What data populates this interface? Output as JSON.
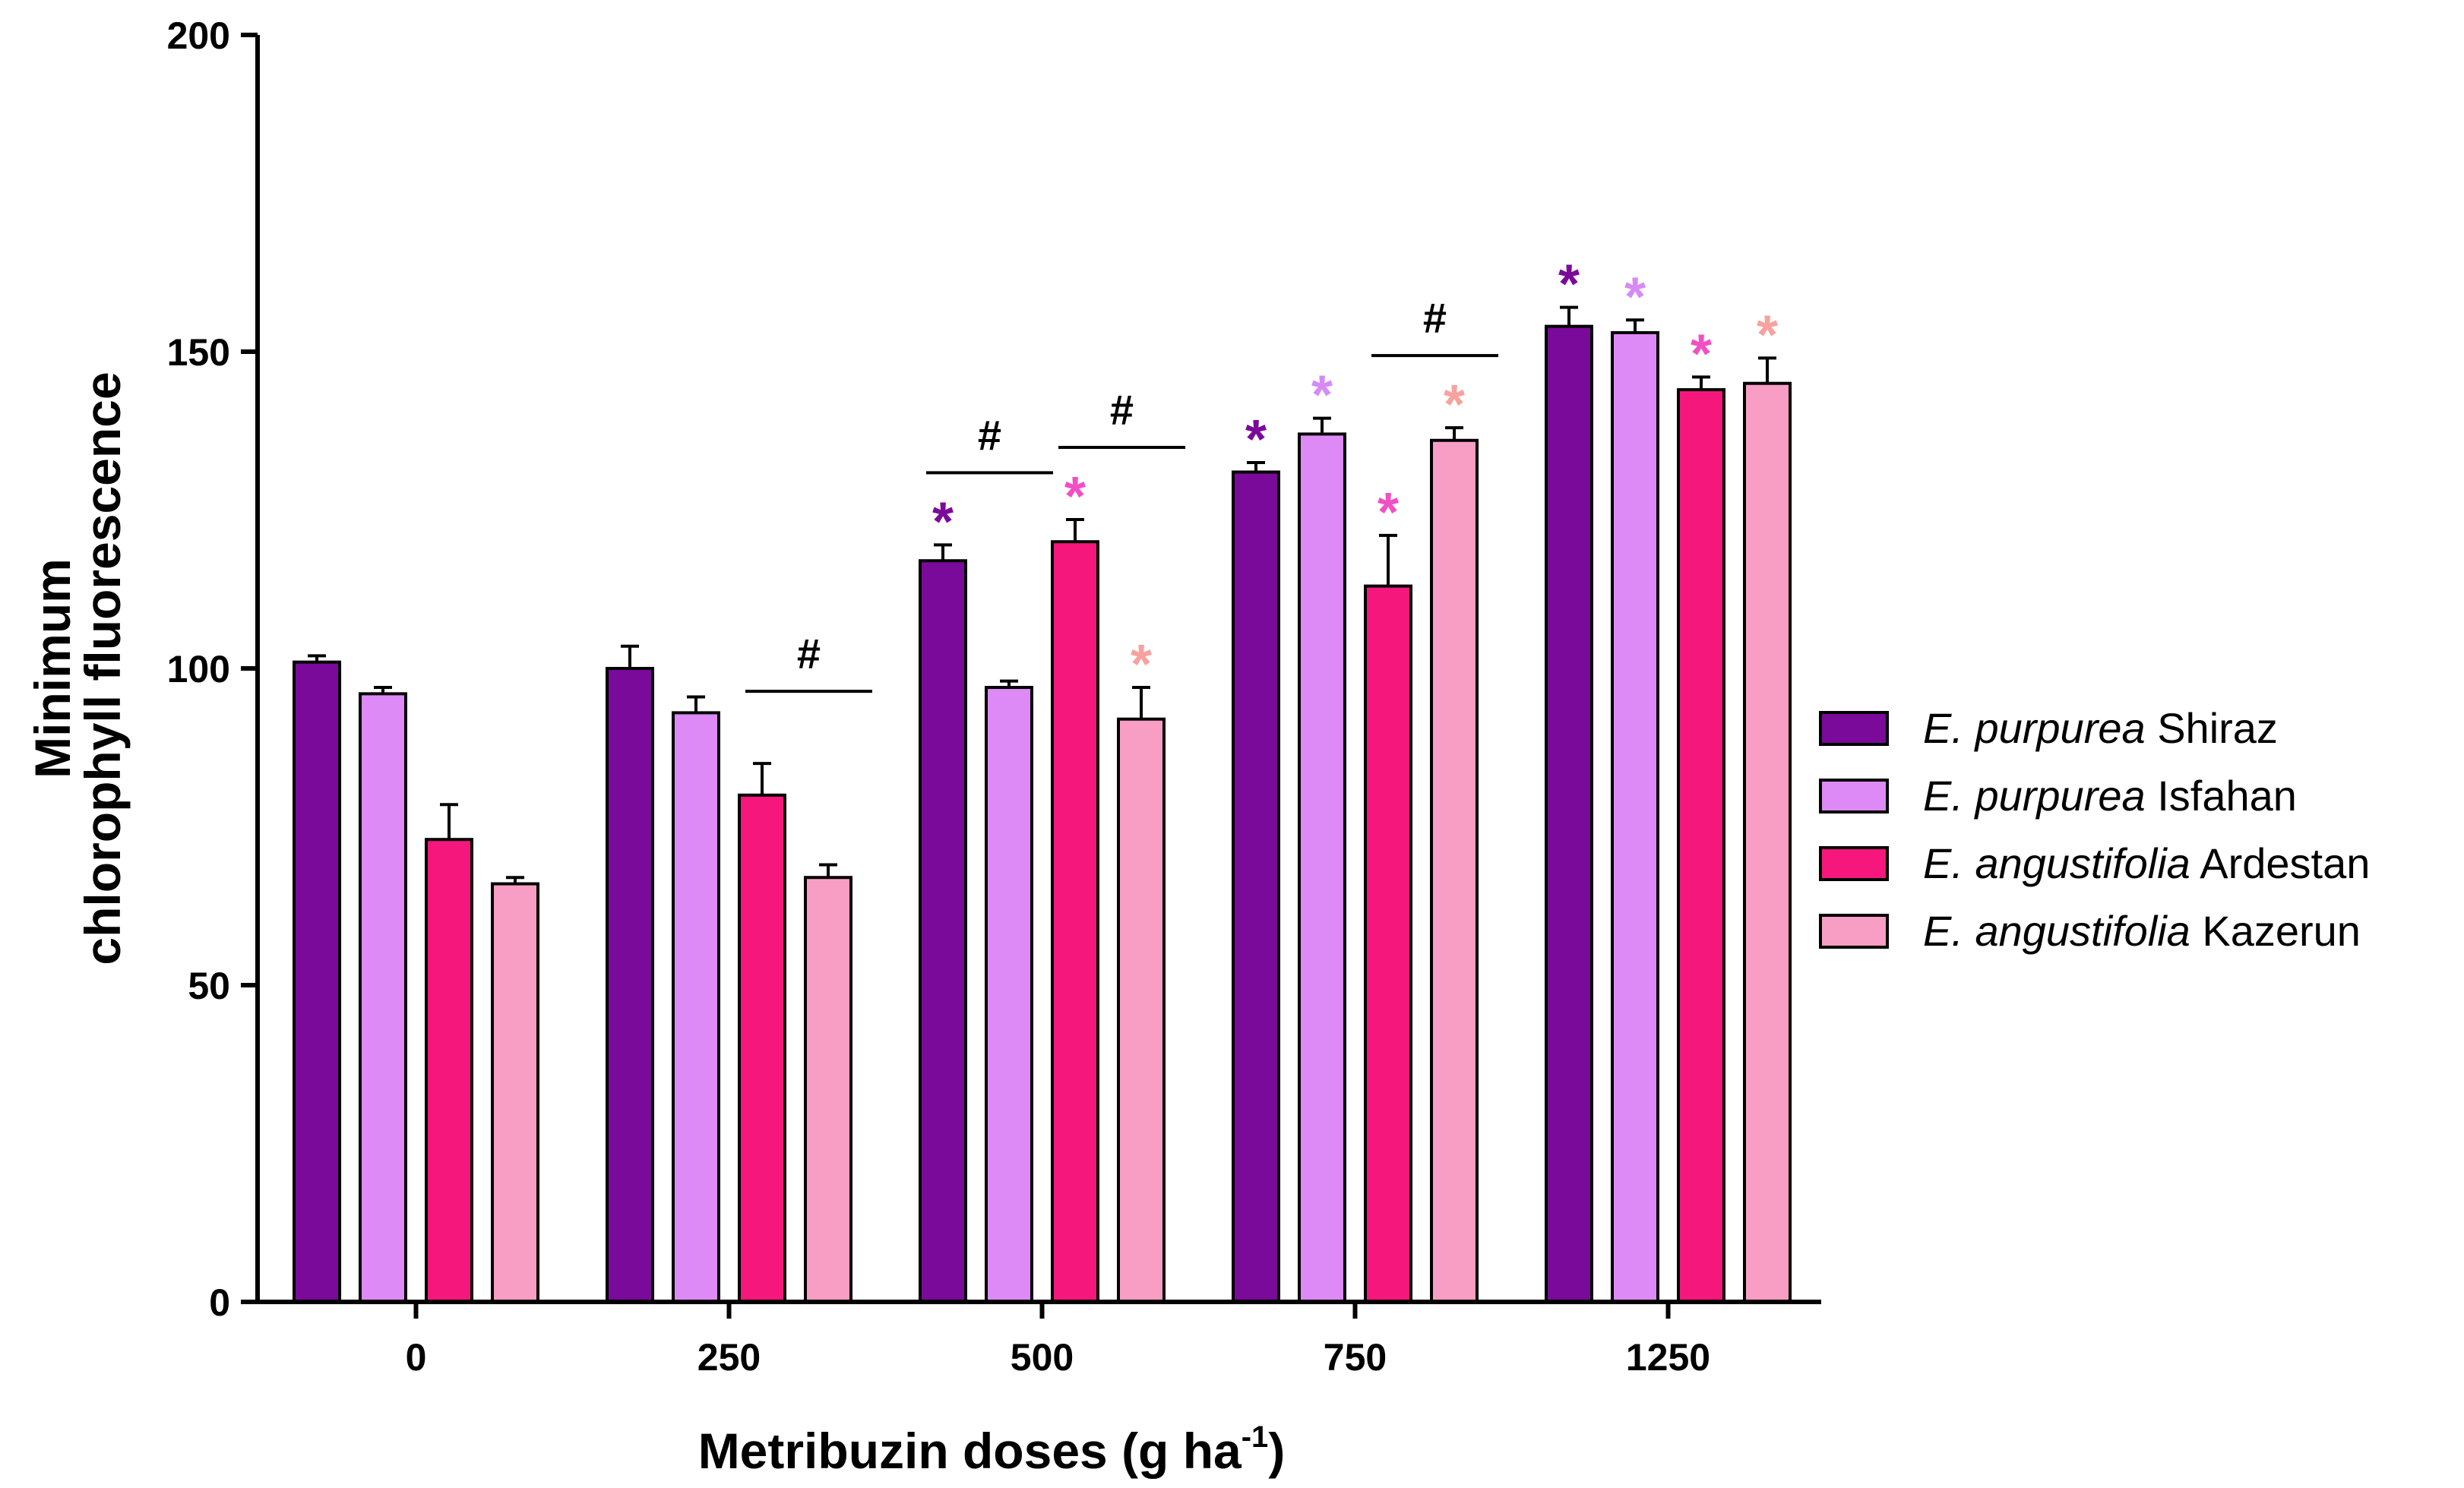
{
  "chart_data": {
    "type": "bar",
    "xlabel": "Metribuzin doses (g ha",
    "xlabel_sup": "-1",
    "xlabel_close": ")",
    "ylabel_line1": "Minimum",
    "ylabel_line2": "chlorophyll fluorescence",
    "ylim": [
      0,
      200
    ],
    "yticks": [
      0,
      50,
      100,
      150,
      200
    ],
    "categories": [
      "0",
      "250",
      "500",
      "750",
      "1250"
    ],
    "grid": false,
    "legend_position": "right",
    "series": [
      {
        "species": "E. purpurea",
        "population": "Shiraz",
        "color": "#7a0a99",
        "values": [
          101,
          100,
          117,
          131,
          154
        ],
        "errors": [
          1,
          3.5,
          2.5,
          1.5,
          3
        ]
      },
      {
        "species": "E. purpurea",
        "population": "Isfahan",
        "color": "#de8af6",
        "values": [
          96,
          93,
          97,
          137,
          153
        ],
        "errors": [
          1,
          2.5,
          1,
          2.5,
          2
        ]
      },
      {
        "species": "E. angustifolia",
        "population": "Ardestan",
        "color": "#f5177c",
        "values": [
          73,
          80,
          120,
          113,
          144
        ],
        "errors": [
          5.5,
          5,
          3.5,
          8,
          2
        ]
      },
      {
        "species": "E. angustifolia",
        "population": "Kazerun",
        "color": "#f89ec4",
        "values": [
          66,
          67,
          92,
          136,
          145
        ],
        "errors": [
          1,
          2,
          5,
          2,
          4
        ]
      }
    ],
    "significance_stars": [
      {
        "category": 2,
        "series": 0,
        "text": "*",
        "color": "#7a0a99"
      },
      {
        "category": 2,
        "series": 2,
        "text": "*",
        "color": "#f24fc4"
      },
      {
        "category": 2,
        "series": 3,
        "text": "*",
        "color": "#f7a29e"
      },
      {
        "category": 3,
        "series": 0,
        "text": "*",
        "color": "#7a0a99"
      },
      {
        "category": 3,
        "series": 1,
        "text": "*",
        "color": "#d68af6"
      },
      {
        "category": 3,
        "series": 2,
        "text": "*",
        "color": "#f24fc4"
      },
      {
        "category": 3,
        "series": 3,
        "text": "*",
        "color": "#f7a29e"
      },
      {
        "category": 4,
        "series": 0,
        "text": "*",
        "color": "#7a0a99"
      },
      {
        "category": 4,
        "series": 1,
        "text": "*",
        "color": "#d68af6"
      },
      {
        "category": 4,
        "series": 2,
        "text": "*",
        "color": "#f24fc4"
      },
      {
        "category": 4,
        "series": 3,
        "text": "*",
        "color": "#f7a29e"
      }
    ],
    "significance_hashes": [
      {
        "category": 1,
        "from_series": 2,
        "to_series": 3,
        "text": "#"
      },
      {
        "category": 2,
        "from_series": 0,
        "to_series": 1,
        "text": "#"
      },
      {
        "category": 2,
        "from_series": 2,
        "to_series": 3,
        "text": "#"
      },
      {
        "category": 3,
        "from_series": 2,
        "to_series": 3,
        "text": "#"
      }
    ]
  }
}
